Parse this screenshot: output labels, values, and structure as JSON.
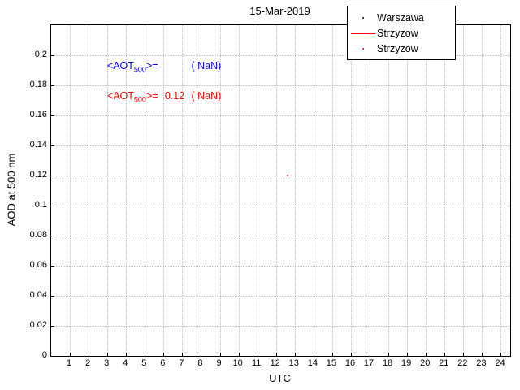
{
  "chart_data": {
    "type": "scatter",
    "title": "15-Mar-2019",
    "xlabel": "UTC",
    "ylabel": "AOD at 500 nm",
    "xlim": [
      0,
      24.5
    ],
    "ylim": [
      0,
      0.22
    ],
    "grid": true,
    "legend_position": "top-right",
    "xticks": [
      1,
      2,
      3,
      4,
      5,
      6,
      7,
      8,
      9,
      10,
      11,
      12,
      13,
      14,
      15,
      16,
      17,
      18,
      19,
      20,
      21,
      22,
      23,
      24
    ],
    "yticks": [
      0,
      0.02,
      0.04,
      0.06,
      0.08,
      0.1,
      0.12,
      0.14,
      0.16,
      0.18,
      0.2
    ],
    "ytick_labels": [
      "0",
      "0.02",
      "0.04",
      "0.06",
      "0.08",
      "0.1",
      "0.12",
      "0.14",
      "0.16",
      "0.18",
      "0.2"
    ],
    "series": [
      {
        "name": "Warszawa",
        "style": "dot",
        "color": "#000000",
        "points": []
      },
      {
        "name": "Strzyzow",
        "style": "line",
        "color": "#ff0000",
        "points": []
      },
      {
        "name": "Strzyzow",
        "style": "dot",
        "color": "#ff0000",
        "points": [
          {
            "x": 12.6,
            "y": 0.12
          }
        ]
      }
    ],
    "legend": [
      {
        "label": "Warszawa",
        "marker": "dot",
        "color": "#000000"
      },
      {
        "label": "Strzyzow",
        "marker": "line",
        "color": "#ff0000"
      },
      {
        "label": "Strzyzow",
        "marker": "dot",
        "color": "#ff0000"
      }
    ],
    "annotations": [
      {
        "pre": "<AOT",
        "sub": "500",
        "post": ">=",
        "value": "",
        "tail": "( NaN)",
        "color": "#0000ff"
      },
      {
        "pre": "<AOT",
        "sub": "500",
        "post": ">=",
        "value": "0.12",
        "tail": "( NaN)",
        "color": "#ff0000"
      }
    ]
  },
  "grid_color": "#b7bcc9"
}
